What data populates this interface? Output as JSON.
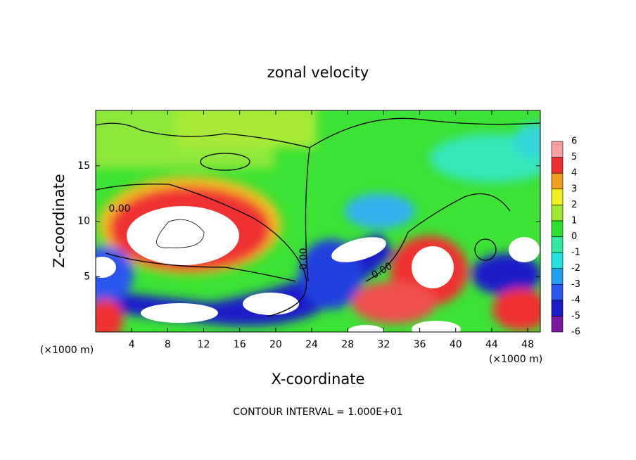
{
  "chart_data": {
    "type": "contour",
    "title": "zonal velocity",
    "x_label": "X-coordinate",
    "y_label": "Z-coordinate",
    "x_unit_left": "(×1000 m)",
    "x_unit_right": "(×1000 m)",
    "footer": "CONTOUR INTERVAL = 1.000E+01",
    "xlim": [
      0,
      49.4
    ],
    "ylim": [
      0,
      20
    ],
    "xticks": [
      4,
      8,
      12,
      16,
      20,
      24,
      28,
      32,
      36,
      40,
      44,
      48
    ],
    "yticks": [
      5,
      10,
      15
    ],
    "contour_labels": [
      "0.00",
      "0.00",
      "0.00"
    ],
    "colorbar": {
      "levels": [
        -6,
        -5,
        -4,
        -3,
        -2,
        -1,
        0,
        1,
        2,
        3,
        4,
        5,
        6
      ],
      "colors": [
        "#7a1aa0",
        "#1c1cc8",
        "#2a56f0",
        "#22a0f0",
        "#22e0e0",
        "#30e8a0",
        "#30e030",
        "#a0e830",
        "#f0f020",
        "#f0a020",
        "#f03030",
        "#f4a0a0"
      ]
    }
  }
}
